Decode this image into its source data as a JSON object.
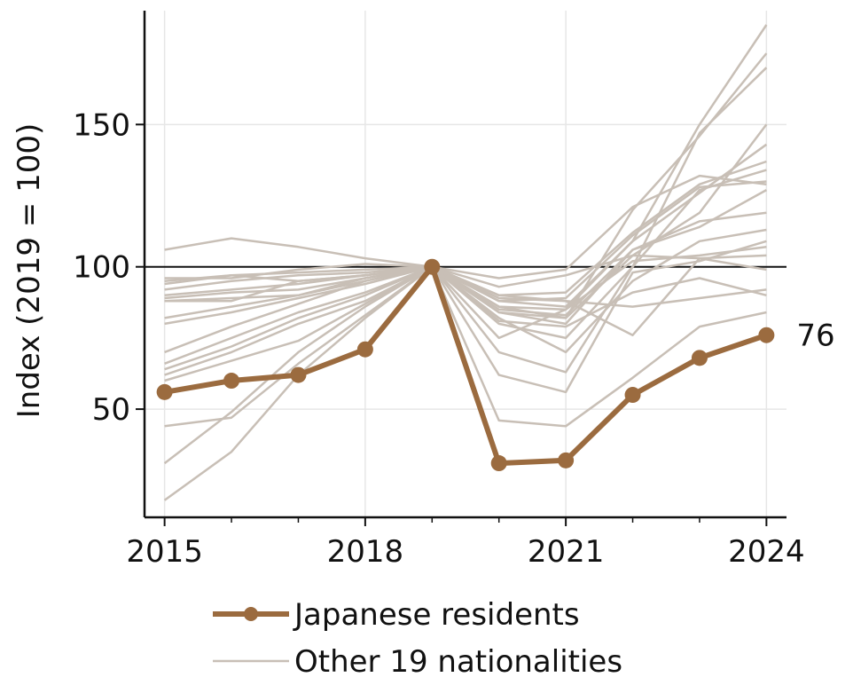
{
  "chart_data": {
    "type": "line",
    "title": "",
    "xlabel": "",
    "ylabel": "Index (2019 = 100)",
    "xlim": [
      2014.7,
      2024.3
    ],
    "ylim": [
      12,
      190
    ],
    "x_ticks_major": [
      2015,
      2018,
      2021,
      2024
    ],
    "x_ticks_minor": [
      2016,
      2017,
      2019,
      2020,
      2022,
      2023
    ],
    "y_ticks": [
      50,
      100,
      150
    ],
    "reference_line": 100,
    "grid": true,
    "legend_position": "bottom",
    "colors": {
      "highlight": "#9b6b3f",
      "others": "#c8bfb6",
      "reference": "#111111",
      "grid": "#e6e6e6"
    },
    "x": [
      2015,
      2016,
      2017,
      2018,
      2019,
      2020,
      2021,
      2022,
      2023,
      2024
    ],
    "highlight": {
      "name": "Japanese residents",
      "values": [
        56,
        60,
        62,
        71,
        100,
        31,
        32,
        55,
        68,
        76
      ],
      "end_label": "76"
    },
    "others": {
      "legend_label": "Other 19 nationalities",
      "series": [
        [
          106,
          110,
          107,
          103,
          100,
          93,
          97,
          104,
          103,
          99
        ],
        [
          95,
          97,
          95,
          97,
          100,
          96,
          99,
          121,
          132,
          129
        ],
        [
          94,
          97,
          98,
          99,
          100,
          88,
          89,
          111,
          128,
          130
        ],
        [
          96,
          96,
          99,
          101,
          100,
          90,
          91,
          112,
          129,
          137
        ],
        [
          89,
          91,
          92,
          96,
          100,
          86,
          85,
          102,
          104,
          107
        ],
        [
          88,
          89,
          90,
          95,
          100,
          85,
          83,
          106,
          116,
          119
        ],
        [
          82,
          86,
          90,
          96,
          100,
          84,
          80,
          106,
          114,
          127
        ],
        [
          70,
          79,
          87,
          95,
          100,
          80,
          75,
          100,
          127,
          134
        ],
        [
          66,
          75,
          84,
          91,
          100,
          82,
          70,
          95,
          109,
          113
        ],
        [
          64,
          72,
          82,
          90,
          100,
          70,
          63,
          100,
          147,
          170
        ],
        [
          62,
          70,
          80,
          88,
          100,
          75,
          85,
          109,
          150,
          185
        ],
        [
          60,
          67,
          74,
          87,
          100,
          62,
          56,
          98,
          102,
          109
        ],
        [
          88,
          88,
          95,
          97,
          100,
          86,
          82,
          120,
          146,
          175
        ],
        [
          92,
          95,
          97,
          98,
          100,
          88,
          86,
          109,
          126,
          143
        ],
        [
          90,
          92,
          94,
          97,
          100,
          84,
          82,
          104,
          119,
          150
        ],
        [
          80,
          84,
          89,
          94,
          100,
          89,
          88,
          86,
          89,
          92
        ],
        [
          44,
          47,
          66,
          83,
          100,
          46,
          44,
          61,
          79,
          84
        ],
        [
          31,
          49,
          70,
          86,
          100,
          81,
          79,
          91,
          96,
          90
        ],
        [
          18,
          35,
          62,
          82,
          100,
          90,
          88,
          76,
          103,
          104
        ]
      ]
    }
  }
}
